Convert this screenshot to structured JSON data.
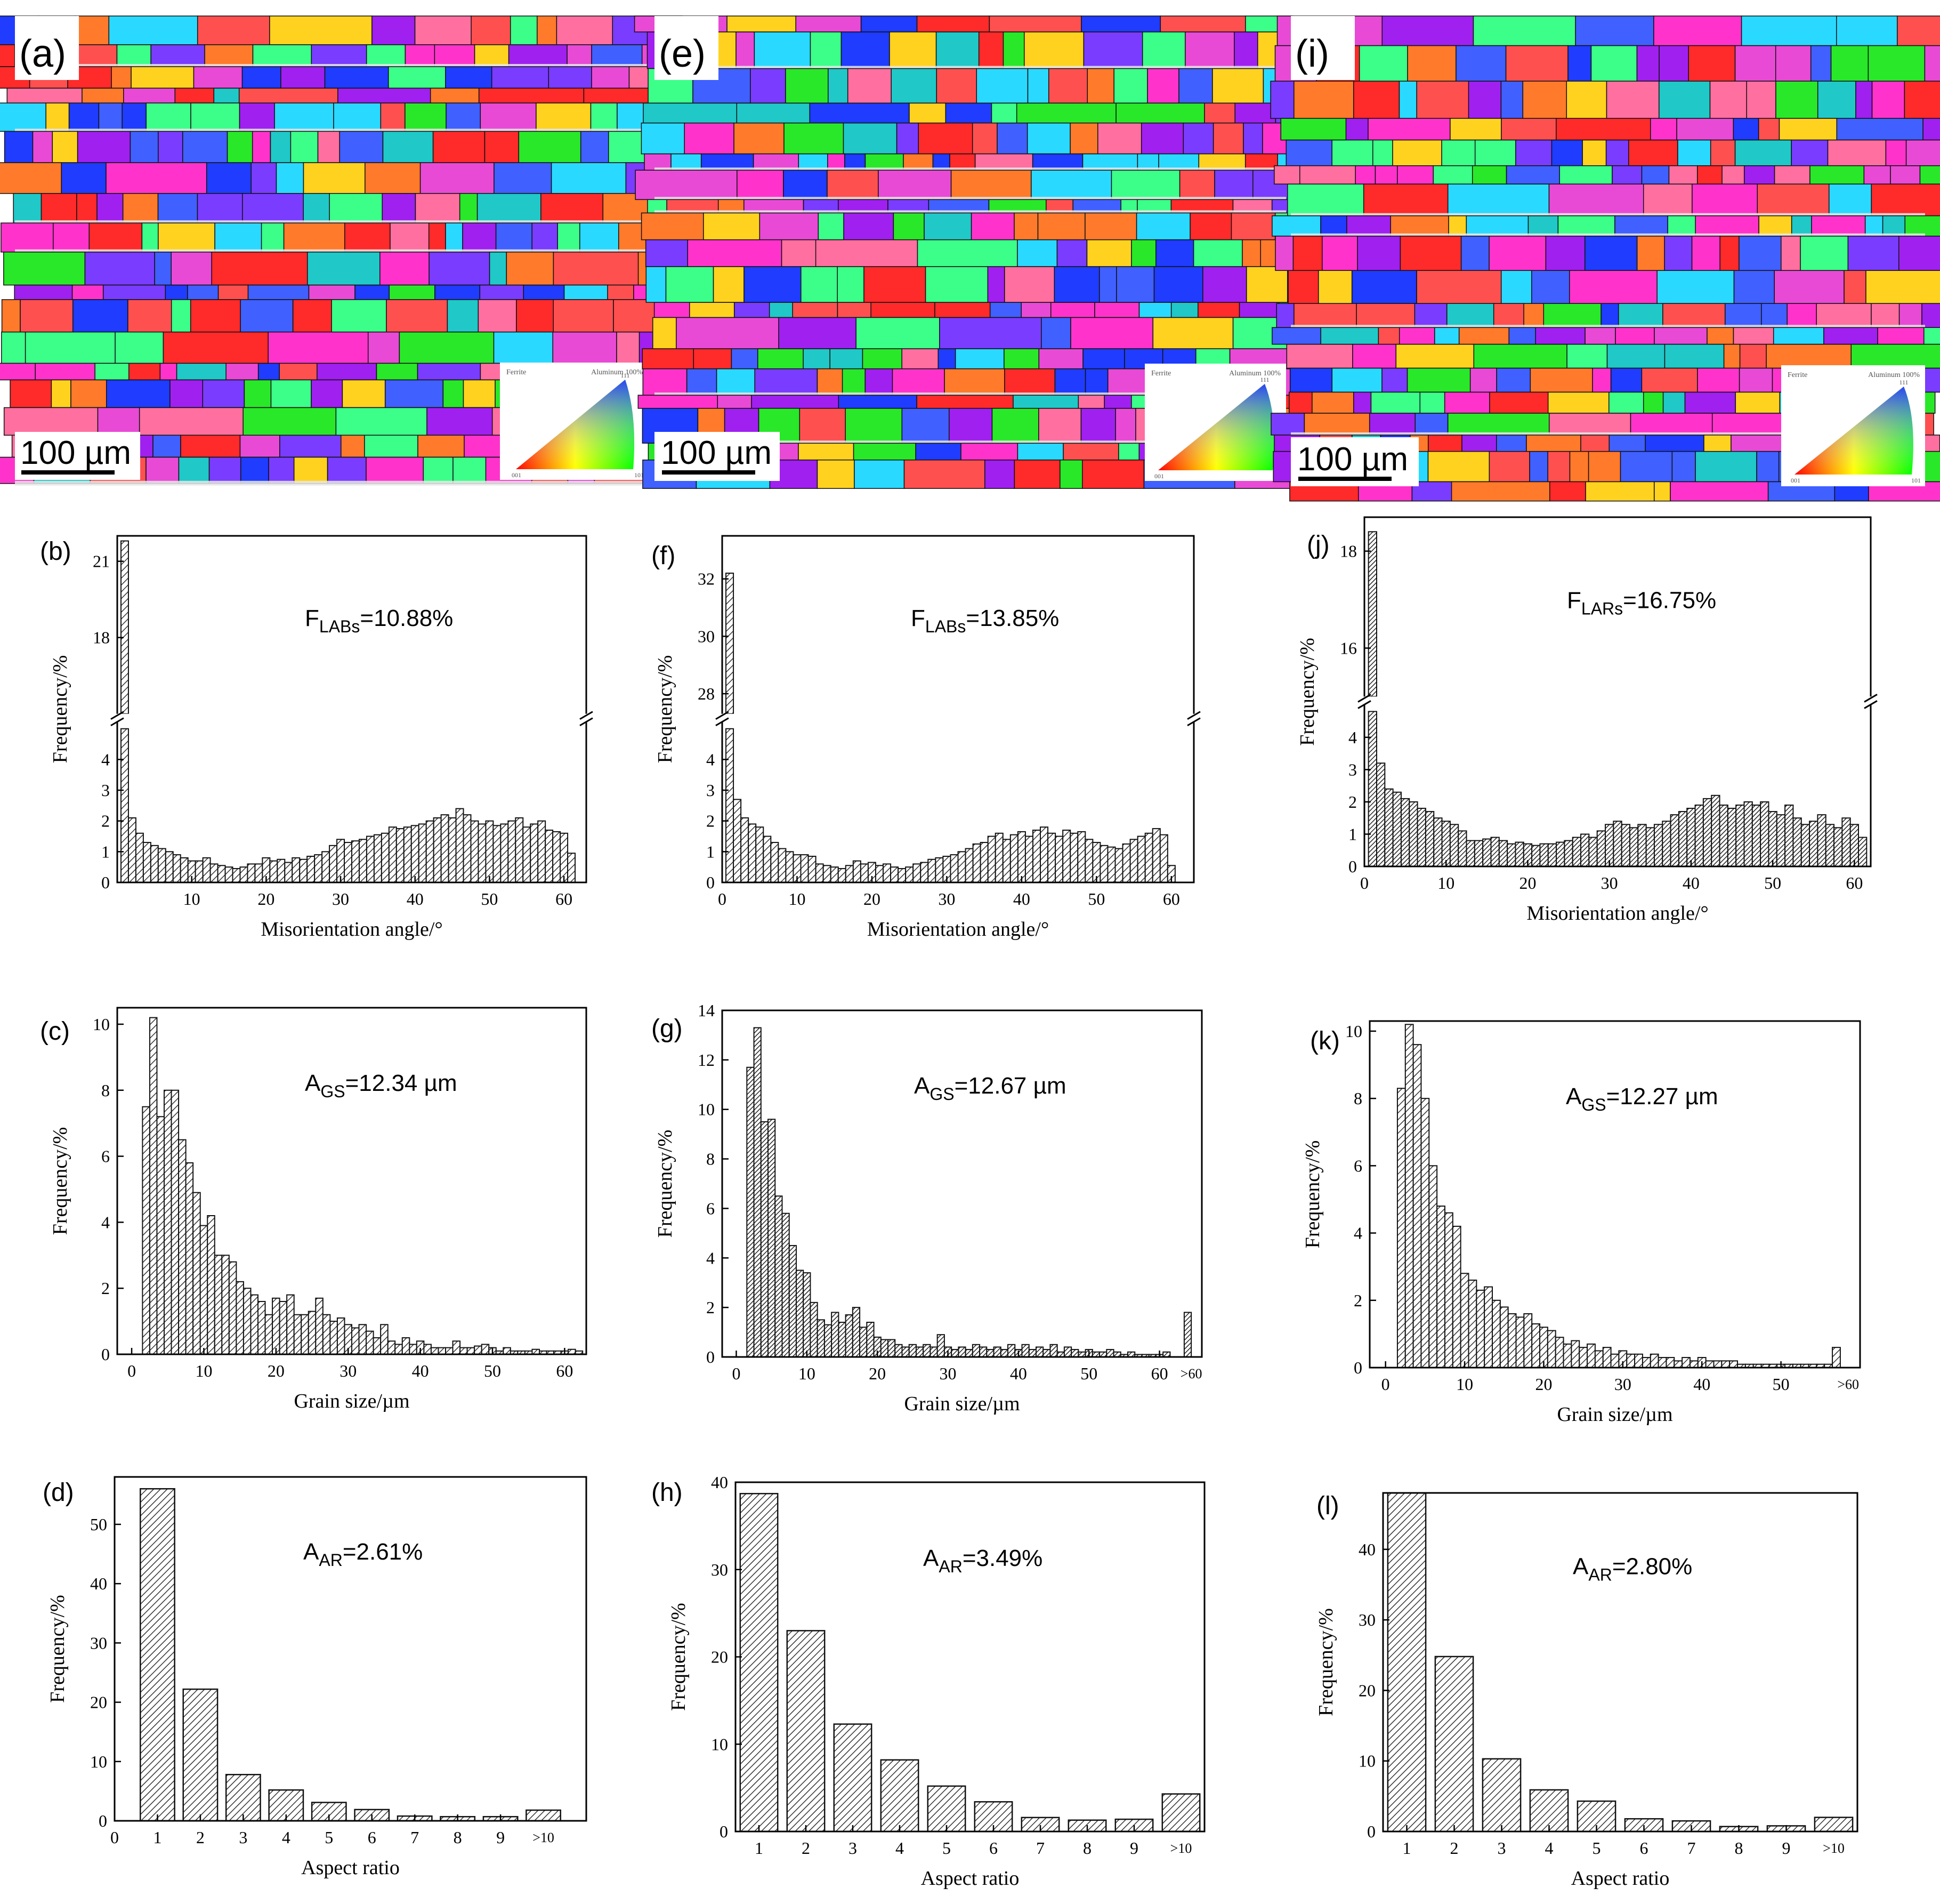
{
  "figure": {
    "ebsd_maps": [
      {
        "label": "(a)",
        "scale_bar": "100 µm",
        "legend_tag_left": "Ferrite",
        "legend_tag_right": "Aluminum 100%",
        "legend_corner_top": "111",
        "legend_corner_left": "001",
        "legend_corner_right": "101"
      },
      {
        "label": "(e)",
        "scale_bar": "100 µm",
        "legend_tag_left": "Ferrite",
        "legend_tag_right": "Aluminum 100%",
        "legend_corner_top": "111",
        "legend_corner_left": "001",
        "legend_corner_right": "101"
      },
      {
        "label": "(i)",
        "scale_bar": "100 µm",
        "legend_tag_left": "Ferrite",
        "legend_tag_right": "Aluminum 100%",
        "legend_corner_top": "111",
        "legend_corner_left": "001",
        "legend_corner_right": "101"
      }
    ],
    "colors": {
      "map_palette": [
        "#ff2a2a",
        "#1f3cff",
        "#29e829",
        "#ff33cc",
        "#ff7a2a",
        "#2ad9ff",
        "#a020f0",
        "#ffd21f",
        "#ff6fa0",
        "#7a3cff",
        "#e84ad6",
        "#3cff8a",
        "#ff5050",
        "#4060ff",
        "#20c8c8"
      ],
      "bar_stroke": "#111111",
      "hatch": "#333333"
    }
  },
  "chart_data": [
    {
      "id": "b",
      "label": "(b)",
      "type": "bar",
      "annotation": {
        "main": "F",
        "sub": "LABs",
        "rest": "=10.88%"
      },
      "xlabel": "Misorientation angle/°",
      "ylabel": "Frequency/%",
      "xlim": [
        0,
        63
      ],
      "xticks": [
        10,
        20,
        30,
        40,
        50,
        60
      ],
      "lower_ylim": [
        0,
        5
      ],
      "lower_yticks": [
        0,
        1,
        2,
        3,
        4
      ],
      "upper_ylim": [
        15,
        22
      ],
      "upper_yticks": [
        18,
        21
      ],
      "axis_break": true,
      "bar_start": 1,
      "bar_width": 1,
      "values": [
        21.8,
        2.1,
        1.6,
        1.3,
        1.2,
        1.1,
        1.0,
        0.9,
        0.8,
        0.7,
        0.7,
        0.8,
        0.6,
        0.55,
        0.5,
        0.45,
        0.5,
        0.6,
        0.6,
        0.8,
        0.7,
        0.75,
        0.65,
        0.8,
        0.75,
        0.85,
        0.9,
        1.0,
        1.2,
        1.4,
        1.3,
        1.35,
        1.4,
        1.5,
        1.55,
        1.6,
        1.8,
        1.75,
        1.8,
        1.85,
        1.9,
        2.0,
        2.1,
        2.2,
        2.1,
        2.4,
        2.2,
        2.0,
        1.9,
        2.0,
        1.85,
        1.9,
        2.0,
        2.1,
        1.8,
        1.9,
        2.0,
        1.7,
        1.65,
        1.6,
        0.95
      ]
    },
    {
      "id": "f",
      "label": "(f)",
      "type": "bar",
      "annotation": {
        "main": "F",
        "sub": "LABs",
        "rest": "=13.85%"
      },
      "xlabel": "Misorientation angle/°",
      "ylabel": "Frequency/%",
      "xlim": [
        0,
        63
      ],
      "xticks": [
        0,
        10,
        20,
        30,
        40,
        50,
        60
      ],
      "lower_ylim": [
        0,
        5
      ],
      "lower_yticks": [
        0,
        1,
        2,
        3,
        4
      ],
      "upper_ylim": [
        27.3,
        33.5
      ],
      "upper_yticks": [
        28,
        30,
        32
      ],
      "axis_break": true,
      "bar_start": 1,
      "bar_width": 1,
      "values": [
        32.2,
        2.7,
        2.1,
        1.9,
        1.8,
        1.5,
        1.3,
        1.1,
        1.0,
        0.9,
        0.9,
        0.85,
        0.6,
        0.55,
        0.5,
        0.45,
        0.55,
        0.7,
        0.6,
        0.65,
        0.55,
        0.6,
        0.5,
        0.45,
        0.5,
        0.6,
        0.65,
        0.75,
        0.8,
        0.85,
        0.9,
        1.0,
        1.1,
        1.25,
        1.3,
        1.5,
        1.6,
        1.4,
        1.55,
        1.65,
        1.5,
        1.7,
        1.8,
        1.6,
        1.5,
        1.7,
        1.6,
        1.65,
        1.4,
        1.3,
        1.2,
        1.15,
        1.1,
        1.25,
        1.4,
        1.5,
        1.6,
        1.75,
        1.55,
        0.55
      ]
    },
    {
      "id": "j",
      "label": "(j)",
      "type": "bar",
      "annotation": {
        "main": "F",
        "sub": "LARs",
        "rest": "=16.75%"
      },
      "xlabel": "Misorientation angle/°",
      "ylabel": "Frequency/%",
      "xlim": [
        0,
        62
      ],
      "xticks": [
        0,
        10,
        20,
        30,
        40,
        50,
        60
      ],
      "lower_ylim": [
        0,
        4.8
      ],
      "lower_yticks": [
        0,
        1,
        2,
        3,
        4
      ],
      "upper_ylim": [
        15,
        18.7
      ],
      "upper_yticks": [
        16,
        18
      ],
      "axis_break": true,
      "bar_start": 1,
      "bar_width": 1,
      "values": [
        18.4,
        3.2,
        2.4,
        2.3,
        2.1,
        2.0,
        1.8,
        1.7,
        1.5,
        1.4,
        1.3,
        1.1,
        0.8,
        0.8,
        0.85,
        0.9,
        0.8,
        0.7,
        0.75,
        0.7,
        0.65,
        0.7,
        0.7,
        0.75,
        0.8,
        0.9,
        1.0,
        0.9,
        1.1,
        1.3,
        1.4,
        1.3,
        1.2,
        1.3,
        1.2,
        1.3,
        1.4,
        1.6,
        1.7,
        1.8,
        1.9,
        2.1,
        2.2,
        1.9,
        1.8,
        1.9,
        2.0,
        1.9,
        2.0,
        1.7,
        1.6,
        1.9,
        1.5,
        1.3,
        1.4,
        1.6,
        1.3,
        1.2,
        1.5,
        1.3,
        0.9
      ]
    },
    {
      "id": "c",
      "label": "(c)",
      "type": "bar",
      "annotation": {
        "main": "A",
        "sub": "GS",
        "rest": "=12.34 µm"
      },
      "xlabel": "Grain size/µm",
      "ylabel": "Frequency/%",
      "xlim": [
        -2,
        63
      ],
      "xticks": [
        0,
        10,
        20,
        30,
        40,
        50,
        60
      ],
      "ylim": [
        0,
        10.5
      ],
      "yticks": [
        0,
        2,
        4,
        6,
        8,
        10
      ],
      "bar_start": 2,
      "bar_width": 1,
      "values": [
        7.5,
        10.2,
        7.2,
        8.0,
        8.0,
        6.5,
        5.8,
        4.9,
        3.9,
        4.2,
        3.0,
        3.0,
        2.8,
        2.2,
        2.0,
        1.8,
        1.6,
        1.2,
        1.7,
        1.6,
        1.8,
        1.2,
        1.2,
        1.3,
        1.7,
        1.2,
        1.0,
        1.1,
        0.9,
        0.8,
        0.9,
        0.7,
        0.5,
        0.9,
        0.4,
        0.3,
        0.5,
        0.3,
        0.4,
        0.3,
        0.2,
        0.2,
        0.2,
        0.4,
        0.2,
        0.2,
        0.25,
        0.3,
        0.2,
        0.1,
        0.2,
        0.1,
        0.1,
        0.1,
        0.15,
        0.1,
        0.1,
        0.1,
        0.1,
        0.15,
        0.1
      ]
    },
    {
      "id": "g",
      "label": "(g)",
      "type": "bar",
      "annotation": {
        "main": "A",
        "sub": "GS",
        "rest": "=12.67 µm"
      },
      "xlabel": "Grain size/µm",
      "ylabel": "Frequency/%",
      "xlim": [
        -2,
        66
      ],
      "xticks": [
        0,
        10,
        20,
        30,
        40,
        50,
        60
      ],
      "extra_tick": ">60",
      "ylim": [
        0,
        14
      ],
      "yticks": [
        0,
        2,
        4,
        6,
        8,
        10,
        12,
        14
      ],
      "bar_start": 2,
      "bar_width": 1,
      "values": [
        11.7,
        13.3,
        9.5,
        9.6,
        6.5,
        5.8,
        4.5,
        3.5,
        3.4,
        2.2,
        1.5,
        1.3,
        1.8,
        1.4,
        1.7,
        2.0,
        1.2,
        1.4,
        0.8,
        0.7,
        0.7,
        0.5,
        0.4,
        0.5,
        0.4,
        0.5,
        0.4,
        0.9,
        0.4,
        0.3,
        0.4,
        0.3,
        0.5,
        0.4,
        0.3,
        0.4,
        0.3,
        0.5,
        0.3,
        0.5,
        0.3,
        0.4,
        0.3,
        0.5,
        0.2,
        0.4,
        0.3,
        0.2,
        0.3,
        0.2,
        0.2,
        0.3,
        0.2,
        0.1,
        0.2,
        0.1,
        0.1,
        0.1,
        0.1,
        0.2,
        0.0,
        0.0,
        1.8
      ]
    },
    {
      "id": "k",
      "label": "(k)",
      "type": "bar",
      "annotation": {
        "main": "A",
        "sub": "GS",
        "rest": "=12.27 µm"
      },
      "xlabel": "Grain size/µm",
      "ylabel": "Frequency/%",
      "xlim": [
        -2,
        60
      ],
      "xticks": [
        0,
        10,
        20,
        30,
        40,
        50
      ],
      "extra_tick": ">60",
      "ylim": [
        0,
        10.3
      ],
      "yticks": [
        0,
        2,
        4,
        6,
        8,
        10
      ],
      "bar_start": 2,
      "bar_width": 1,
      "values": [
        8.3,
        10.2,
        9.6,
        8.0,
        6.0,
        4.8,
        4.6,
        4.2,
        2.8,
        2.6,
        2.3,
        2.4,
        2.0,
        1.8,
        1.6,
        1.5,
        1.6,
        1.3,
        1.2,
        1.1,
        0.9,
        0.7,
        0.8,
        0.6,
        0.7,
        0.5,
        0.6,
        0.4,
        0.5,
        0.4,
        0.4,
        0.3,
        0.4,
        0.3,
        0.3,
        0.2,
        0.3,
        0.2,
        0.3,
        0.2,
        0.2,
        0.2,
        0.2,
        0.1,
        0.1,
        0.1,
        0.1,
        0.1,
        0.1,
        0.1,
        0.1,
        0.1,
        0.1,
        0.1,
        0.1,
        0.6
      ]
    },
    {
      "id": "d",
      "label": "(d)",
      "type": "bar",
      "annotation": {
        "main": "A",
        "sub": "AR",
        "rest": "=2.61%"
      },
      "xlabel": "Aspect ratio",
      "ylabel": "Frequency/%",
      "xlim": [
        0,
        11
      ],
      "xticks": [
        0,
        1,
        2,
        3,
        4,
        5,
        6,
        7,
        8,
        9
      ],
      "extra_tick": ">10",
      "ylim": [
        0,
        58
      ],
      "yticks": [
        0,
        10,
        20,
        30,
        40,
        50
      ],
      "categories": [
        "1",
        "2",
        "3",
        "4",
        "5",
        "6",
        "7",
        "8",
        "9",
        ">10"
      ],
      "values": [
        56.0,
        22.2,
        7.8,
        5.2,
        3.1,
        1.9,
        0.8,
        0.7,
        0.7,
        1.8
      ]
    },
    {
      "id": "h",
      "label": "(h)",
      "type": "bar",
      "annotation": {
        "main": "A",
        "sub": "AR",
        "rest": "=3.49%"
      },
      "xlabel": "Aspect ratio",
      "ylabel": "Frequency/%",
      "xlim": [
        0.5,
        10.5
      ],
      "xticks": [
        1,
        2,
        3,
        4,
        5,
        6,
        7,
        8,
        9
      ],
      "extra_tick": ">10",
      "ylim": [
        0,
        40
      ],
      "yticks": [
        0,
        10,
        20,
        30,
        40
      ],
      "categories": [
        "1",
        "2",
        "3",
        "4",
        "5",
        "6",
        "7",
        "8",
        "9",
        ">10"
      ],
      "values": [
        38.7,
        23.0,
        12.3,
        8.2,
        5.2,
        3.4,
        1.6,
        1.3,
        1.4,
        4.3
      ]
    },
    {
      "id": "l",
      "label": "(l)",
      "type": "bar",
      "annotation": {
        "main": "A",
        "sub": "AR",
        "rest": "=2.80%"
      },
      "xlabel": "Aspect ratio",
      "ylabel": "Frequency/%",
      "xlim": [
        0.5,
        10.5
      ],
      "xticks": [
        1,
        2,
        3,
        4,
        5,
        6,
        7,
        8,
        9
      ],
      "extra_tick": ">10",
      "ylim": [
        0,
        48
      ],
      "yticks": [
        0,
        10,
        20,
        30,
        40
      ],
      "categories": [
        "1",
        "2",
        "3",
        "4",
        "5",
        "6",
        "7",
        "8",
        "9",
        ">10"
      ],
      "values": [
        48.0,
        24.8,
        10.3,
        5.9,
        4.3,
        1.8,
        1.5,
        0.7,
        0.8,
        2.0
      ]
    }
  ]
}
